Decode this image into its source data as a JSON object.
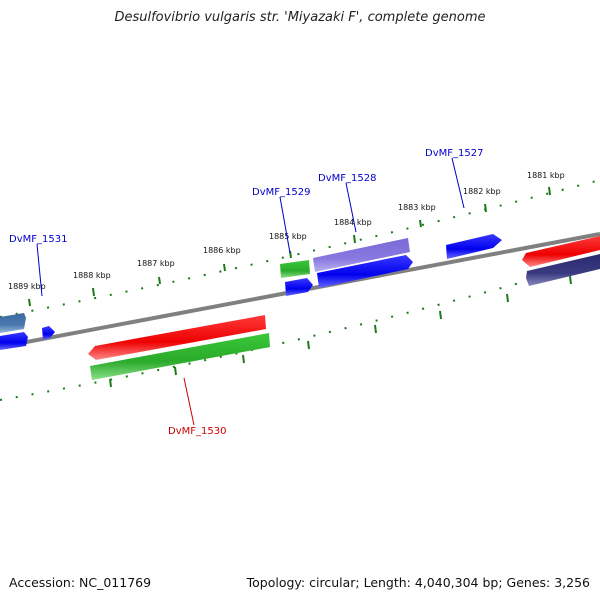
{
  "title": "Desulfovibrio vulgaris str. 'Miyazaki F', complete genome",
  "footer": {
    "accession": "Accession: NC_011769",
    "summary": "Topology: circular; Length: 4,040,304 bp; Genes: 3,256"
  },
  "kbp_labels": [
    "1881 kbp",
    "1882 kbp",
    "1883 kbp",
    "1884 kbp",
    "1885 kbp",
    "1886 kbp",
    "1887 kbp",
    "1888 kbp",
    "1889 kbp"
  ],
  "gene_labels": {
    "dvmf_1527": "DvMF_1527",
    "dvmf_1528": "DvMF_1528",
    "dvmf_1529": "DvMF_1529",
    "dvmf_1530": "DvMF_1530",
    "dvmf_1531": "DvMF_1531"
  },
  "colors": {
    "backbone": "#808080",
    "forward_cds": "#0000ee",
    "forward_gene": "#8878e0",
    "reverse_cds": "#ee0000",
    "reverse_gene": "#2aaa2a",
    "dark_gene": "#3a3a80",
    "steel_gene": "#4a7ab0",
    "tick": "#1a7a1a",
    "label_blue": "#0000cc",
    "label_red": "#cc0000"
  }
}
